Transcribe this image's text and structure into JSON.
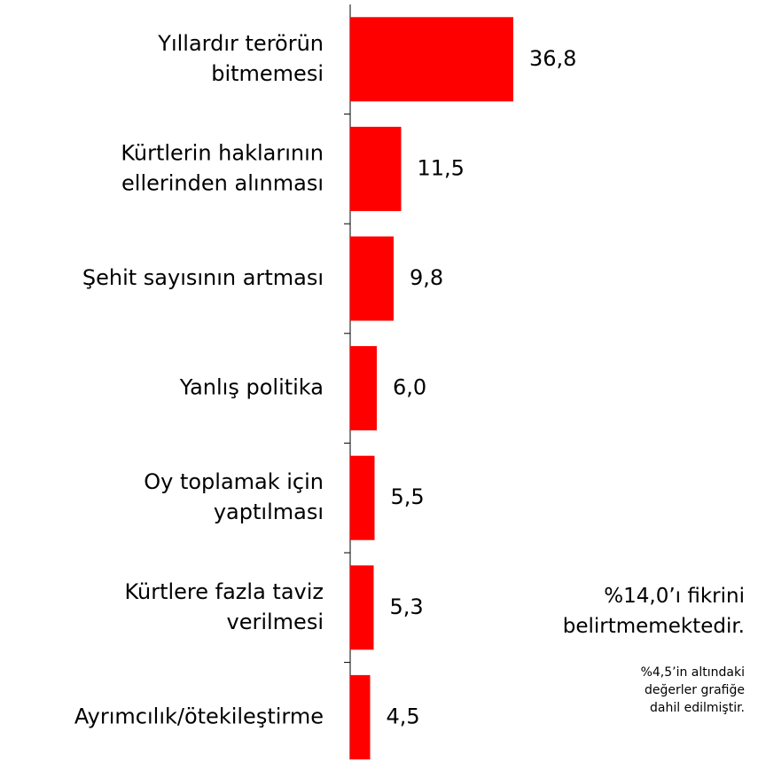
{
  "chart_data": {
    "type": "bar",
    "orientation": "horizontal",
    "categories": [
      "Yıllardır terörün\nbitmemesi",
      "Kürtlerin haklarının\nellerinden alınması",
      "Şehit sayısının artması",
      "Yanlış politika",
      "Oy toplamak için\nyaptılması",
      "Kürtlere fazla taviz\nverilmesi",
      "Ayrımcılık/ötekileştirme"
    ],
    "values": [
      36.8,
      11.5,
      9.8,
      6.0,
      5.5,
      5.3,
      4.5
    ],
    "value_labels": [
      "36,8",
      "11,5",
      "9,8",
      "6,0",
      "5,5",
      "5,3",
      "4,5"
    ],
    "color": "#ff0000",
    "annotations": [
      "%14,0’ı fikrini\nbelirtmemektedir.",
      "%4,5’in altındaki\ndeğerler grafiğe\ndahil edilmiştir."
    ]
  }
}
